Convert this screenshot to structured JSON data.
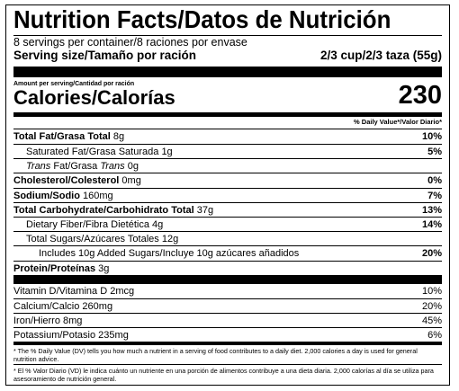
{
  "title": "Nutrition Facts/Datos de Nutrición",
  "servings": "8 servings per container/8 raciones por envase",
  "serving_size": {
    "label": "Serving size/Tamaño por ración",
    "value": "2/3 cup/2/3 taza (55g)"
  },
  "amount_per_serving": "Amount per serving/Cantidad por ración",
  "calories": {
    "label": "Calories/Calorías",
    "value": "230"
  },
  "dv_header": "% Daily Value*/Valor Diario*",
  "nutrients": [
    {
      "name": "Total Fat/Grasa Total",
      "amount": "8g",
      "dv": "10%"
    },
    {
      "name": "Saturated Fat/Grasa Saturada",
      "amount": "1g",
      "dv": "5%"
    },
    {
      "name_pre": "Trans",
      "name_mid": " Fat/Grasa ",
      "name_post": "Trans",
      "amount": "0g",
      "dv": ""
    },
    {
      "name": "Cholesterol/Colesterol",
      "amount": "0mg",
      "dv": "0%"
    },
    {
      "name": "Sodium/Sodio",
      "amount": "160mg",
      "dv": "7%"
    },
    {
      "name": "Total Carbohydrate/Carbohidrato Total",
      "amount": "37g",
      "dv": "13%"
    },
    {
      "name": "Dietary Fiber/Fibra Dietética",
      "amount": "4g",
      "dv": "14%"
    },
    {
      "name": "Total Sugars/Azúcares Totales",
      "amount": "12g",
      "dv": ""
    },
    {
      "name": "Includes 10g Added Sugars/Incluye 10g azúcares añadidos",
      "amount": "",
      "dv": "20%"
    },
    {
      "name": "Protein/Proteínas",
      "amount": "3g",
      "dv": ""
    }
  ],
  "vitamins": [
    {
      "name": "Vitamin D/Vitamina D",
      "amount": "2mcg",
      "dv": "10%"
    },
    {
      "name": "Calcium/Calcio",
      "amount": "260mg",
      "dv": "20%"
    },
    {
      "name": "Iron/Hierro",
      "amount": "8mg",
      "dv": "45%"
    },
    {
      "name": "Potassium/Potasio",
      "amount": "235mg",
      "dv": "6%"
    }
  ],
  "footnotes": [
    "* The % Daily Value (DV) tells you how much a nutrient in a serving of food contributes to a daily diet. 2,000 calories a day is used for general nutrition advice.",
    "* El % Valor Diario (VD) le indica cuánto un nutriente en una porción de alimentos contribuye a una dieta diaria. 2,000 calorías al día se utiliza para asesoramiento de nutrición general."
  ]
}
